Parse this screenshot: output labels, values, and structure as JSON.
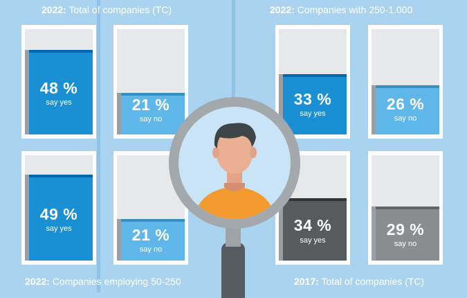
{
  "titles": {
    "top_left": {
      "year": "2022:",
      "text": "Total of companies (TC)"
    },
    "top_right": {
      "year": "2022:",
      "text": "Companies with 250-1.000"
    },
    "bottom_left": {
      "year": "2022:",
      "text": "Companies employing 50-250"
    },
    "bottom_right": {
      "year": "2017:",
      "text": "Total of companies (TC)"
    }
  },
  "panels": [
    {
      "group": "2022 Total of companies (TC)",
      "answer": "say yes",
      "value": "48 %",
      "fill": 0.48,
      "color": "#1b8fd4"
    },
    {
      "group": "2022 Total of companies (TC)",
      "answer": "say no",
      "value": "21 %",
      "fill": 0.21,
      "color": "#5fb7e9"
    },
    {
      "group": "2022 Companies employing 50-250",
      "answer": "say yes",
      "value": "49 %",
      "fill": 0.49,
      "color": "#1b8fd4"
    },
    {
      "group": "2022 Companies employing 50-250",
      "answer": "say no",
      "value": "21 %",
      "fill": 0.21,
      "color": "#5fb7e9"
    },
    {
      "group": "2022 Companies with 250-1.000",
      "answer": "say yes",
      "value": "33 %",
      "fill": 0.33,
      "color": "#1b8fd4"
    },
    {
      "group": "2022 Companies with 250-1.000",
      "answer": "say no",
      "value": "26 %",
      "fill": 0.26,
      "color": "#5fb7e9"
    },
    {
      "group": "2017 Total of companies (TC)",
      "answer": "say yes",
      "value": "34 %",
      "fill": 0.34,
      "color": "#575b5e"
    },
    {
      "group": "2017 Total of companies (TC)",
      "answer": "say no",
      "value": "29 %",
      "fill": 0.29,
      "color": "#8a8e91"
    }
  ],
  "colors": {
    "background": "#a9d3ee",
    "yes_blue": "#1b8fd4",
    "no_blue": "#5fb7e9",
    "yes_grey": "#575b5e",
    "no_grey": "#8a8e91",
    "person_shirt": "#f29a2e"
  },
  "icons": {
    "center": "magnifier-person-icon"
  }
}
